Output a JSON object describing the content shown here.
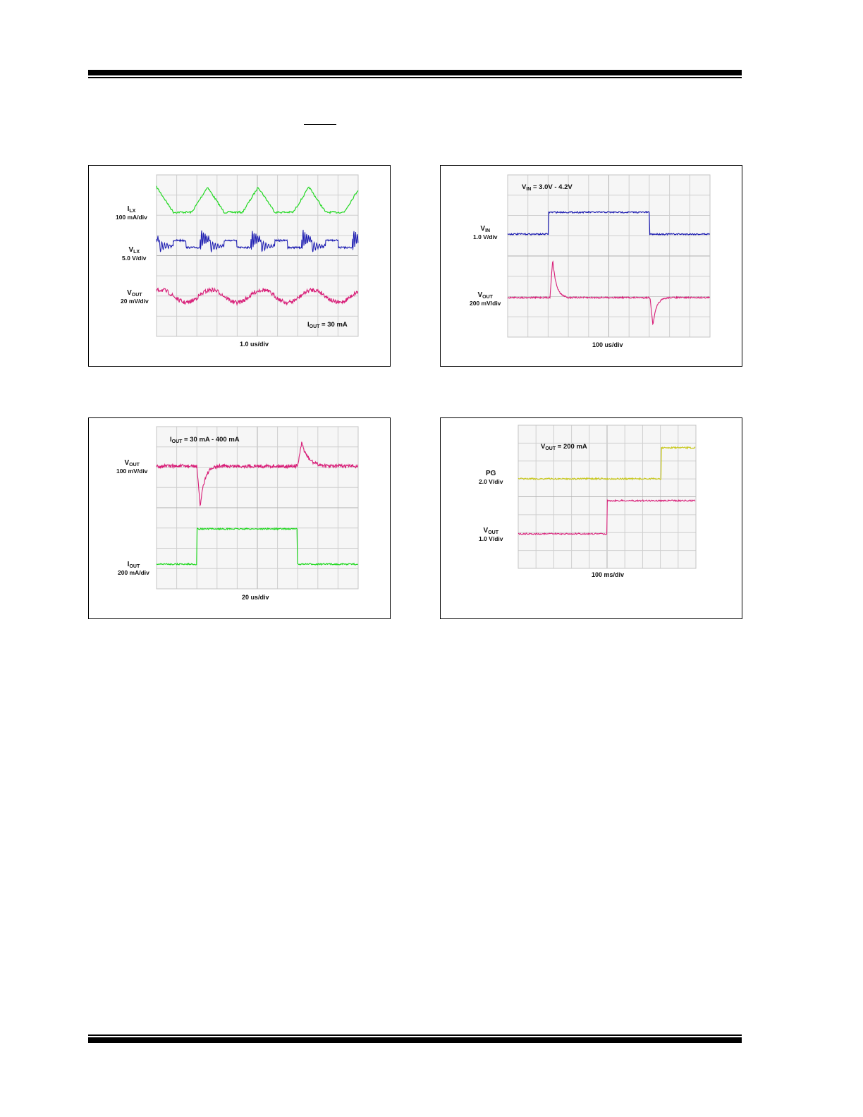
{
  "figures": [
    {
      "id": "fig1",
      "traces": [
        {
          "main": "I",
          "sub": "LX",
          "scale": "100 mA/div",
          "color": "#22d822"
        },
        {
          "main": "V",
          "sub": "LX",
          "scale": "5.0 V/div",
          "color": "#1a1ab0"
        },
        {
          "main": "V",
          "sub": "OUT",
          "scale": "20 mV/div",
          "color": "#d81e78"
        }
      ],
      "note": {
        "main": "I",
        "sub": "OUT",
        "rest": " = 30 mA"
      },
      "timebase": "1.0 us/div"
    },
    {
      "id": "fig2",
      "traces": [
        {
          "main": "V",
          "sub": "IN",
          "scale": "1.0 V/div",
          "color": "#1a1ab0"
        },
        {
          "main": "V",
          "sub": "OUT",
          "scale": "200 mV/div",
          "color": "#d81e78"
        }
      ],
      "note": {
        "main": "V",
        "sub": "IN",
        "rest": " = 3.0V - 4.2V"
      },
      "timebase": "100 us/div"
    },
    {
      "id": "fig3",
      "traces": [
        {
          "main": "V",
          "sub": "OUT",
          "scale": "100 mV/div",
          "color": "#d81e78"
        },
        {
          "main": "I",
          "sub": "OUT",
          "scale": "200 mA/div",
          "color": "#22d822"
        }
      ],
      "note": {
        "main": "I",
        "sub": "OUT",
        "rest": " = 30 mA - 400 mA"
      },
      "timebase": "20 us/div"
    },
    {
      "id": "fig4",
      "traces": [
        {
          "main": "PG",
          "sub": "",
          "scale": "2.0 V/div",
          "color": "#c8c81e"
        },
        {
          "main": "V",
          "sub": "OUT",
          "scale": "1.0 V/div",
          "color": "#d81e78"
        }
      ],
      "note": {
        "main": "V",
        "sub": "OUT",
        "rest": " = 200 mA"
      },
      "timebase": "100 ms/div"
    }
  ]
}
